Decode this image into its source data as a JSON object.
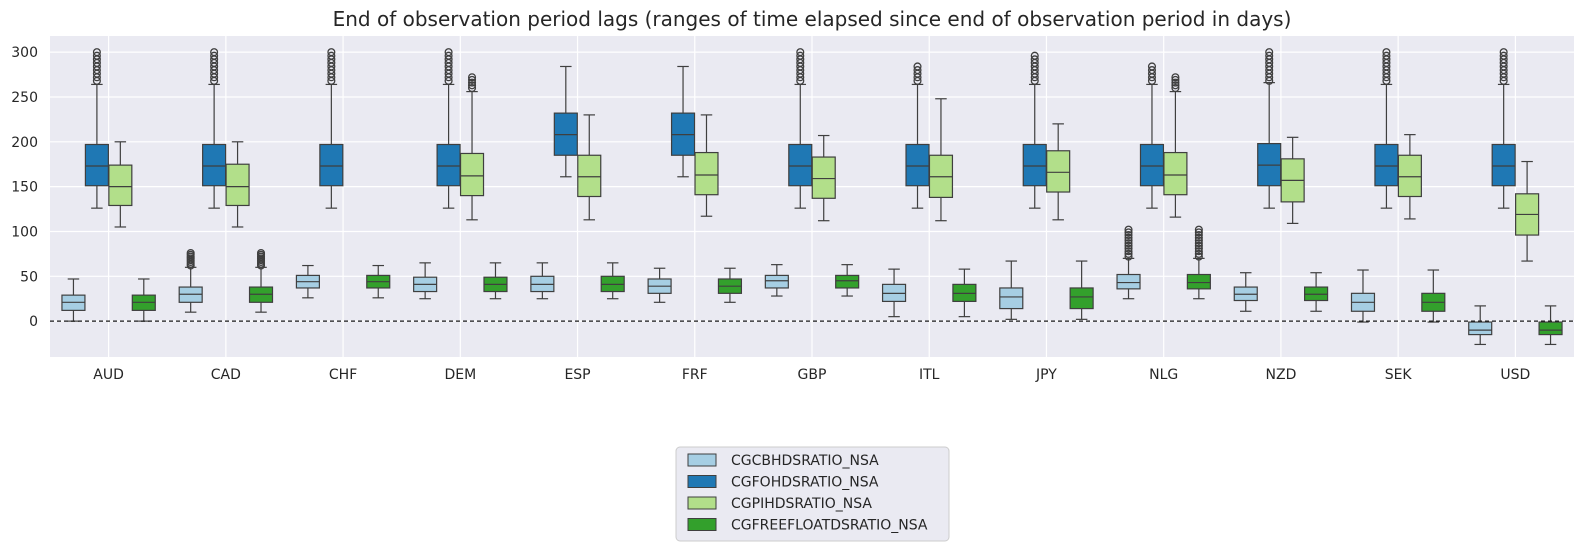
{
  "chart_data": {
    "type": "boxplot",
    "title": "End of observation period lags (ranges of time elapsed since end of observation period in days)",
    "xlabel": "",
    "ylabel": "",
    "ylim": [
      -40,
      318
    ],
    "yticks": [
      0,
      50,
      100,
      150,
      200,
      250,
      300
    ],
    "grid": true,
    "reference_line": 0,
    "legend_position": "bottom-center",
    "categories": [
      "AUD",
      "CAD",
      "CHF",
      "DEM",
      "ESP",
      "FRF",
      "GBP",
      "ITL",
      "JPY",
      "NLG",
      "NZD",
      "SEK",
      "USD"
    ],
    "series": [
      {
        "name": "CGCBHDSRATIO_NSA",
        "color": "#a6cee3",
        "boxes": [
          {
            "cat": "AUD",
            "whislo": 0,
            "q1": 12,
            "med": 21,
            "q3": 29,
            "whishi": 47,
            "fliers": []
          },
          {
            "cat": "CAD",
            "whislo": 10,
            "q1": 21,
            "med": 30,
            "q3": 38,
            "whishi": 60,
            "fliers": [
              62,
              64,
              66,
              68,
              70,
              72,
              74,
              76
            ]
          },
          {
            "cat": "CHF",
            "whislo": 26,
            "q1": 37,
            "med": 44,
            "q3": 51,
            "whishi": 62,
            "fliers": []
          },
          {
            "cat": "DEM",
            "whislo": 25,
            "q1": 33,
            "med": 41,
            "q3": 49,
            "whishi": 65,
            "fliers": []
          },
          {
            "cat": "ESP",
            "whislo": 25,
            "q1": 33,
            "med": 41,
            "q3": 50,
            "whishi": 65,
            "fliers": []
          },
          {
            "cat": "FRF",
            "whislo": 21,
            "q1": 31,
            "med": 39,
            "q3": 47,
            "whishi": 59,
            "fliers": []
          },
          {
            "cat": "GBP",
            "whislo": 28,
            "q1": 37,
            "med": 45,
            "q3": 51,
            "whishi": 63,
            "fliers": []
          },
          {
            "cat": "ITL",
            "whislo": 5,
            "q1": 22,
            "med": 31,
            "q3": 41,
            "whishi": 58,
            "fliers": []
          },
          {
            "cat": "JPY",
            "whislo": 2,
            "q1": 14,
            "med": 27,
            "q3": 37,
            "whishi": 67,
            "fliers": []
          },
          {
            "cat": "NLG",
            "whislo": 25,
            "q1": 36,
            "med": 43,
            "q3": 52,
            "whishi": 70,
            "fliers": [
              72,
              75,
              78,
              81,
              84,
              87,
              90,
              93,
              96,
              99,
              102
            ]
          },
          {
            "cat": "NZD",
            "whislo": 11,
            "q1": 23,
            "med": 30,
            "q3": 38,
            "whishi": 54,
            "fliers": []
          },
          {
            "cat": "SEK",
            "whislo": -1,
            "q1": 11,
            "med": 21,
            "q3": 31,
            "whishi": 57,
            "fliers": []
          },
          {
            "cat": "USD",
            "whislo": -26,
            "q1": -15,
            "med": -10,
            "q3": -1,
            "whishi": 17,
            "fliers": []
          }
        ]
      },
      {
        "name": "CGFOHDSRATIO_NSA",
        "color": "#1f78b4",
        "boxes": [
          {
            "cat": "AUD",
            "whislo": 126,
            "q1": 151,
            "med": 173,
            "q3": 197,
            "whishi": 264,
            "fliers": [
              268,
              272,
              276,
              280,
              284,
              288,
              292,
              296,
              300
            ]
          },
          {
            "cat": "CAD",
            "whislo": 126,
            "q1": 151,
            "med": 173,
            "q3": 197,
            "whishi": 264,
            "fliers": [
              268,
              272,
              276,
              280,
              284,
              288,
              292,
              296,
              300
            ]
          },
          {
            "cat": "CHF",
            "whislo": 126,
            "q1": 151,
            "med": 173,
            "q3": 197,
            "whishi": 264,
            "fliers": [
              268,
              272,
              276,
              280,
              284,
              288,
              292,
              296,
              300
            ]
          },
          {
            "cat": "DEM",
            "whislo": 126,
            "q1": 151,
            "med": 173,
            "q3": 197,
            "whishi": 264,
            "fliers": [
              268,
              272,
              276,
              280,
              284,
              288,
              292,
              296,
              300
            ]
          },
          {
            "cat": "ESP",
            "whislo": 161,
            "q1": 185,
            "med": 208,
            "q3": 232,
            "whishi": 284,
            "fliers": []
          },
          {
            "cat": "FRF",
            "whislo": 161,
            "q1": 185,
            "med": 208,
            "q3": 232,
            "whishi": 284,
            "fliers": []
          },
          {
            "cat": "GBP",
            "whislo": 126,
            "q1": 151,
            "med": 173,
            "q3": 197,
            "whishi": 264,
            "fliers": [
              268,
              272,
              276,
              280,
              284,
              288,
              292,
              296,
              300
            ]
          },
          {
            "cat": "ITL",
            "whislo": 126,
            "q1": 151,
            "med": 173,
            "q3": 197,
            "whishi": 264,
            "fliers": [
              268,
              272,
              276,
              280,
              284
            ]
          },
          {
            "cat": "JPY",
            "whislo": 126,
            "q1": 151,
            "med": 173,
            "q3": 197,
            "whishi": 264,
            "fliers": [
              268,
              272,
              276,
              280,
              284,
              288,
              292,
              296
            ]
          },
          {
            "cat": "NLG",
            "whislo": 126,
            "q1": 151,
            "med": 173,
            "q3": 197,
            "whishi": 264,
            "fliers": [
              268,
              272,
              276,
              280,
              284
            ]
          },
          {
            "cat": "NZD",
            "whislo": 126,
            "q1": 151,
            "med": 174,
            "q3": 198,
            "whishi": 266,
            "fliers": [
              268,
              272,
              276,
              280,
              284,
              288,
              292,
              296,
              300
            ]
          },
          {
            "cat": "SEK",
            "whislo": 126,
            "q1": 151,
            "med": 173,
            "q3": 197,
            "whishi": 264,
            "fliers": [
              268,
              272,
              276,
              280,
              284,
              288,
              292,
              296,
              300
            ]
          },
          {
            "cat": "USD",
            "whislo": 126,
            "q1": 151,
            "med": 173,
            "q3": 197,
            "whishi": 264,
            "fliers": [
              268,
              272,
              276,
              280,
              284,
              288,
              292,
              296,
              300
            ]
          }
        ]
      },
      {
        "name": "CGPIHDSRATIO_NSA",
        "color": "#b2df8a",
        "boxes": [
          {
            "cat": "AUD",
            "whislo": 105,
            "q1": 129,
            "med": 150,
            "q3": 174,
            "whishi": 200,
            "fliers": []
          },
          {
            "cat": "CAD",
            "whislo": 105,
            "q1": 129,
            "med": 150,
            "q3": 175,
            "whishi": 200,
            "fliers": []
          },
          null,
          {
            "cat": "DEM",
            "whislo": 113,
            "q1": 140,
            "med": 162,
            "q3": 187,
            "whishi": 256,
            "fliers": [
              260,
              263,
              266,
              269,
              272
            ]
          },
          {
            "cat": "ESP",
            "whislo": 113,
            "q1": 139,
            "med": 161,
            "q3": 185,
            "whishi": 230,
            "fliers": []
          },
          {
            "cat": "FRF",
            "whislo": 117,
            "q1": 141,
            "med": 163,
            "q3": 188,
            "whishi": 230,
            "fliers": []
          },
          {
            "cat": "GBP",
            "whislo": 112,
            "q1": 137,
            "med": 159,
            "q3": 183,
            "whishi": 207,
            "fliers": []
          },
          {
            "cat": "ITL",
            "whislo": 112,
            "q1": 138,
            "med": 161,
            "q3": 185,
            "whishi": 248,
            "fliers": []
          },
          {
            "cat": "JPY",
            "whislo": 113,
            "q1": 144,
            "med": 166,
            "q3": 190,
            "whishi": 220,
            "fliers": []
          },
          {
            "cat": "NLG",
            "whislo": 116,
            "q1": 141,
            "med": 163,
            "q3": 188,
            "whishi": 256,
            "fliers": [
              260,
              263,
              266,
              269,
              272
            ]
          },
          {
            "cat": "NZD",
            "whislo": 109,
            "q1": 133,
            "med": 157,
            "q3": 181,
            "whishi": 205,
            "fliers": []
          },
          {
            "cat": "SEK",
            "whislo": 114,
            "q1": 139,
            "med": 161,
            "q3": 185,
            "whishi": 208,
            "fliers": []
          },
          {
            "cat": "USD",
            "whislo": 67,
            "q1": 96,
            "med": 119,
            "q3": 142,
            "whishi": 178,
            "fliers": []
          }
        ]
      },
      {
        "name": "CGFREEFLOATDSRATIO_NSA",
        "color": "#33a02c",
        "boxes": [
          {
            "cat": "AUD",
            "whislo": 0,
            "q1": 12,
            "med": 21,
            "q3": 29,
            "whishi": 47,
            "fliers": []
          },
          {
            "cat": "CAD",
            "whislo": 10,
            "q1": 21,
            "med": 30,
            "q3": 38,
            "whishi": 60,
            "fliers": [
              62,
              64,
              66,
              68,
              70,
              72,
              74,
              76
            ]
          },
          {
            "cat": "CHF",
            "whislo": 26,
            "q1": 37,
            "med": 44,
            "q3": 51,
            "whishi": 62,
            "fliers": []
          },
          {
            "cat": "DEM",
            "whislo": 25,
            "q1": 33,
            "med": 41,
            "q3": 49,
            "whishi": 65,
            "fliers": []
          },
          {
            "cat": "ESP",
            "whislo": 25,
            "q1": 33,
            "med": 41,
            "q3": 50,
            "whishi": 65,
            "fliers": []
          },
          {
            "cat": "FRF",
            "whislo": 21,
            "q1": 31,
            "med": 39,
            "q3": 47,
            "whishi": 59,
            "fliers": []
          },
          {
            "cat": "GBP",
            "whislo": 28,
            "q1": 37,
            "med": 45,
            "q3": 51,
            "whishi": 63,
            "fliers": []
          },
          {
            "cat": "ITL",
            "whislo": 5,
            "q1": 22,
            "med": 31,
            "q3": 41,
            "whishi": 58,
            "fliers": []
          },
          {
            "cat": "JPY",
            "whislo": 2,
            "q1": 14,
            "med": 27,
            "q3": 37,
            "whishi": 67,
            "fliers": []
          },
          {
            "cat": "NLG",
            "whislo": 25,
            "q1": 36,
            "med": 43,
            "q3": 52,
            "whishi": 70,
            "fliers": [
              72,
              75,
              78,
              81,
              84,
              87,
              90,
              93,
              96,
              99,
              102
            ]
          },
          {
            "cat": "NZD",
            "whislo": 11,
            "q1": 23,
            "med": 30,
            "q3": 38,
            "whishi": 54,
            "fliers": []
          },
          {
            "cat": "SEK",
            "whislo": -1,
            "q1": 11,
            "med": 21,
            "q3": 31,
            "whishi": 57,
            "fliers": []
          },
          {
            "cat": "USD",
            "whislo": -26,
            "q1": -15,
            "med": -10,
            "q3": -1,
            "whishi": 17,
            "fliers": []
          }
        ]
      }
    ]
  }
}
